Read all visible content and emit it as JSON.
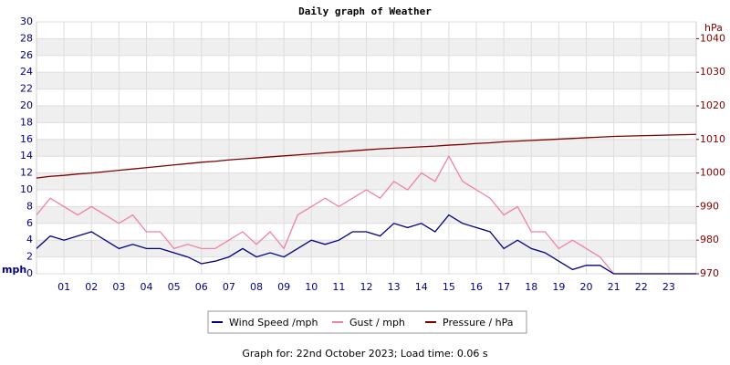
{
  "chart_data": {
    "type": "line",
    "title": "Daily graph of Weather",
    "y_label": "mph",
    "y2_label": "hPa",
    "footer": "Graph for: 22nd October 2023; Load time: 0.06 s",
    "x": [
      0,
      0.5,
      1,
      1.5,
      2,
      2.5,
      3,
      3.5,
      4,
      4.5,
      5,
      5.5,
      6,
      6.5,
      7,
      7.5,
      8,
      8.5,
      9,
      9.5,
      10,
      10.5,
      11,
      11.5,
      12,
      12.5,
      13,
      13.5,
      14,
      14.5,
      15,
      15.5,
      16,
      16.5,
      17,
      17.5,
      18,
      18.5,
      19,
      19.5,
      20,
      20.5,
      21,
      21.5,
      22,
      22.5,
      23,
      23.5,
      24
    ],
    "series": [
      {
        "name": "Wind Speed /mph",
        "color": "#000080",
        "values": [
          3,
          4.5,
          4,
          4.5,
          5,
          4,
          3,
          3.5,
          3,
          3,
          2.5,
          2,
          1.2,
          1.5,
          2,
          3,
          2,
          2.5,
          2,
          3,
          4,
          3.5,
          4,
          5,
          5,
          4.5,
          6,
          5.5,
          6,
          5,
          7,
          6,
          5.5,
          5,
          3,
          4,
          3,
          2.5,
          1.5,
          0.5,
          1,
          1,
          0,
          0,
          0,
          0,
          0,
          0,
          0
        ]
      },
      {
        "name": "Gust / mph",
        "color": "#f080a8",
        "values": [
          7,
          9,
          8,
          7,
          8,
          7,
          6,
          7,
          5,
          5,
          3,
          3.5,
          3,
          3,
          4,
          5,
          3.5,
          5,
          3,
          7,
          8,
          9,
          8,
          9,
          10,
          9,
          11,
          10,
          12,
          11,
          14,
          11,
          10,
          9,
          7,
          8,
          5,
          5,
          3,
          4,
          3,
          2,
          0,
          0,
          0,
          0,
          0,
          0,
          0
        ]
      },
      {
        "name": "Pressure / hPa",
        "color": "#800000",
        "axis": "y2",
        "values": [
          998.5,
          999,
          999.3,
          999.7,
          1000,
          1000.4,
          1000.8,
          1001.2,
          1001.6,
          1002,
          1002.4,
          1002.8,
          1003.2,
          1003.5,
          1003.9,
          1004.2,
          1004.5,
          1004.8,
          1005.1,
          1005.4,
          1005.7,
          1006,
          1006.3,
          1006.6,
          1006.9,
          1007.2,
          1007.4,
          1007.6,
          1007.8,
          1008,
          1008.3,
          1008.5,
          1008.8,
          1009,
          1009.3,
          1009.5,
          1009.7,
          1009.9,
          1010.1,
          1010.3,
          1010.5,
          1010.7,
          1010.9,
          1011,
          1011.1,
          1011.2,
          1011.3,
          1011.4,
          1011.5
        ]
      }
    ],
    "xlim": [
      0,
      24
    ],
    "xticks": [
      {
        "value": 1,
        "label": "01"
      },
      {
        "value": 2,
        "label": "02"
      },
      {
        "value": 3,
        "label": "03"
      },
      {
        "value": 4,
        "label": "04"
      },
      {
        "value": 5,
        "label": "05"
      },
      {
        "value": 6,
        "label": "06"
      },
      {
        "value": 7,
        "label": "07"
      },
      {
        "value": 8,
        "label": "08"
      },
      {
        "value": 9,
        "label": "09"
      },
      {
        "value": 10,
        "label": "10"
      },
      {
        "value": 11,
        "label": "11"
      },
      {
        "value": 12,
        "label": "12"
      },
      {
        "value": 13,
        "label": "13"
      },
      {
        "value": 14,
        "label": "14"
      },
      {
        "value": 15,
        "label": "15"
      },
      {
        "value": 16,
        "label": "16"
      },
      {
        "value": 17,
        "label": "17"
      },
      {
        "value": 18,
        "label": "18"
      },
      {
        "value": 19,
        "label": "19"
      },
      {
        "value": 20,
        "label": "20"
      },
      {
        "value": 21,
        "label": "21"
      },
      {
        "value": 22,
        "label": "22"
      },
      {
        "value": 23,
        "label": "23"
      }
    ],
    "ylim": [
      0,
      30
    ],
    "yticks": [
      0,
      2,
      4,
      6,
      8,
      10,
      12,
      14,
      16,
      18,
      20,
      22,
      24,
      26,
      28,
      30
    ],
    "y2lim": [
      970,
      1045
    ],
    "y2ticks": [
      970,
      980,
      990,
      1000,
      1010,
      1020,
      1030,
      1040
    ],
    "grid": true
  }
}
